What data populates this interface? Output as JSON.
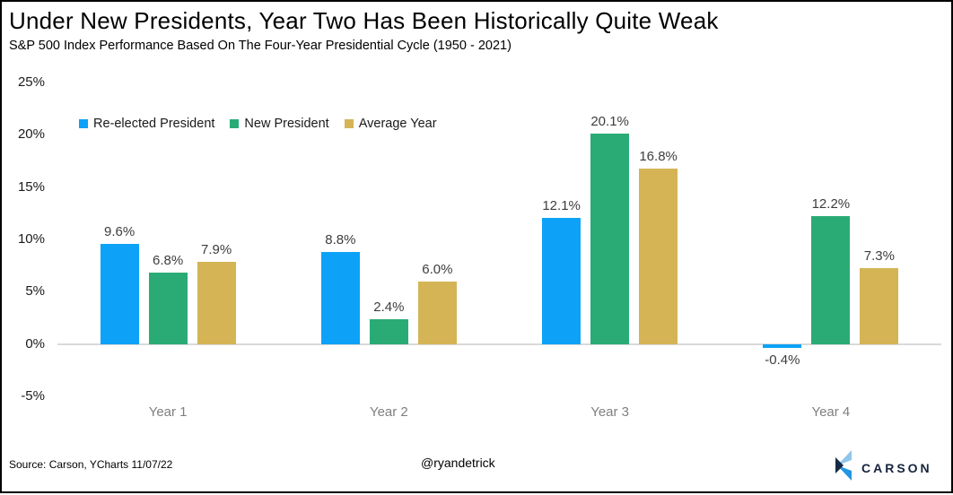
{
  "header": {
    "title": "Under New Presidents, Year Two Has Been Historically Quite Weak",
    "subtitle": "S&P 500 Index Performance Based On The Four-Year Presidential Cycle (1950 - 2021)"
  },
  "chart_data": {
    "type": "bar",
    "title": "Under New Presidents, Year Two Has Been Historically Quite Weak",
    "subtitle": "S&P 500 Index Performance Based On The Four-Year Presidential Cycle (1950 - 2021)",
    "categories": [
      "Year 1",
      "Year 2",
      "Year 3",
      "Year 4"
    ],
    "series": [
      {
        "name": "Re-elected President",
        "color": "#0da2f7",
        "values": [
          9.6,
          8.8,
          12.1,
          -0.4
        ]
      },
      {
        "name": "New President",
        "color": "#2aab76",
        "values": [
          6.8,
          2.4,
          20.1,
          12.2
        ]
      },
      {
        "name": "Average Year",
        "color": "#d4b455",
        "values": [
          7.9,
          6.0,
          16.8,
          7.3
        ]
      }
    ],
    "value_suffix": "%",
    "y_ticks": [
      25,
      20,
      15,
      10,
      5,
      0,
      -5
    ],
    "ylim": [
      -5,
      25
    ],
    "grid": "zero-line-only",
    "legend_position": "top-left",
    "colors": {
      "zero_line": "#d9d9d9",
      "category_label": "#7f7f7f",
      "value_label": "#3d3d3d"
    }
  },
  "footer": {
    "source": "Source: Carson, YCharts 11/07/22",
    "handle": "@ryandetrick",
    "logo_text": "CARSON",
    "logo_colors": {
      "light": "#8fc6ec",
      "navy": "#152a46",
      "blue": "#2196e3"
    }
  }
}
